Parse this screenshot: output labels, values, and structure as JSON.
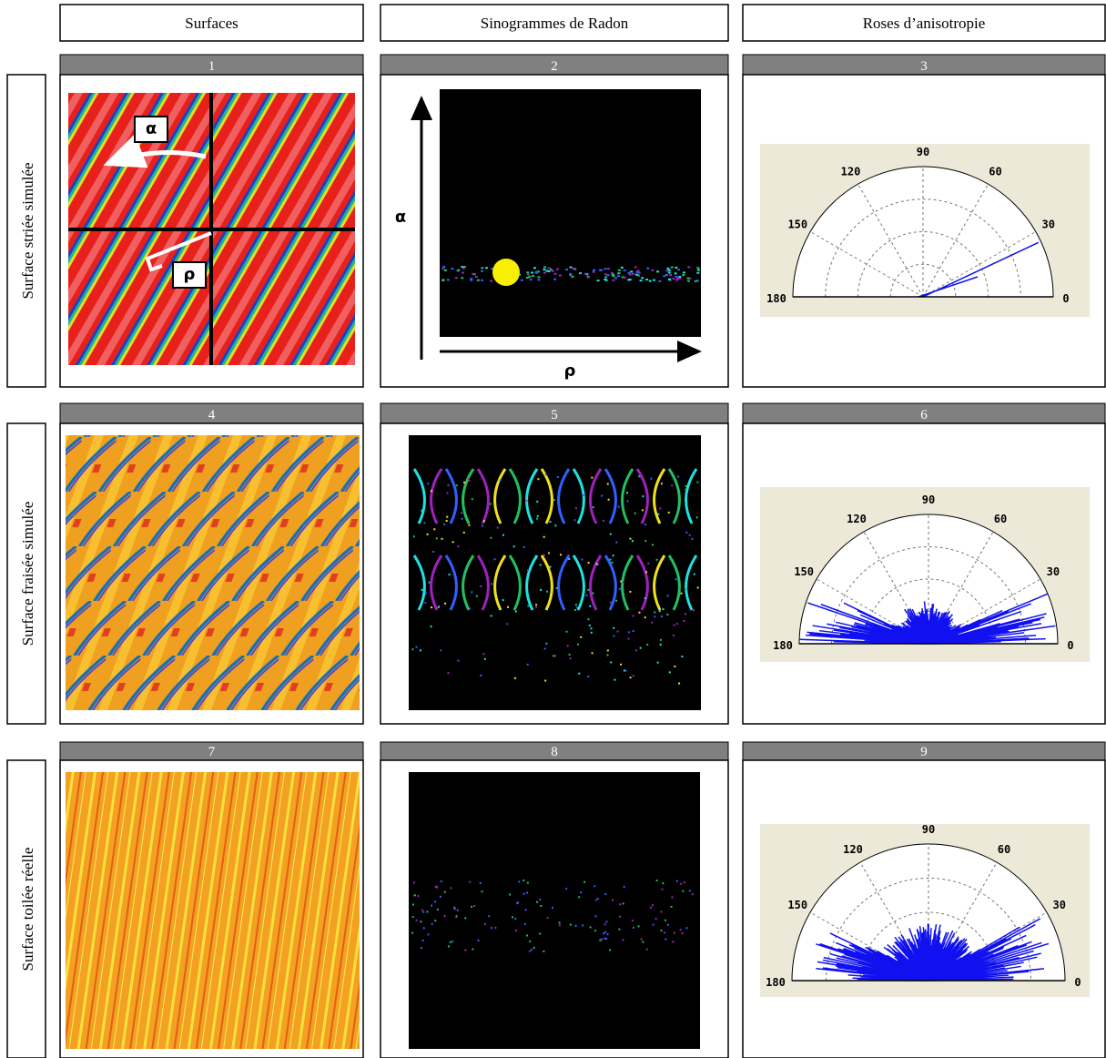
{
  "columns": [
    "Surfaces",
    "Sinogrammes de Radon",
    "Roses d’anisotropie"
  ],
  "rows": [
    "Surface striée simulée",
    "Surface fraisée simulée",
    "Surface toilée réelle"
  ],
  "panels": [
    "1",
    "2",
    "3",
    "4",
    "5",
    "6",
    "7",
    "8",
    "9"
  ],
  "annotations": {
    "alpha": "α",
    "rho": "ρ"
  },
  "rose_angles": [
    180,
    150,
    120,
    90,
    60,
    30,
    0
  ]
}
